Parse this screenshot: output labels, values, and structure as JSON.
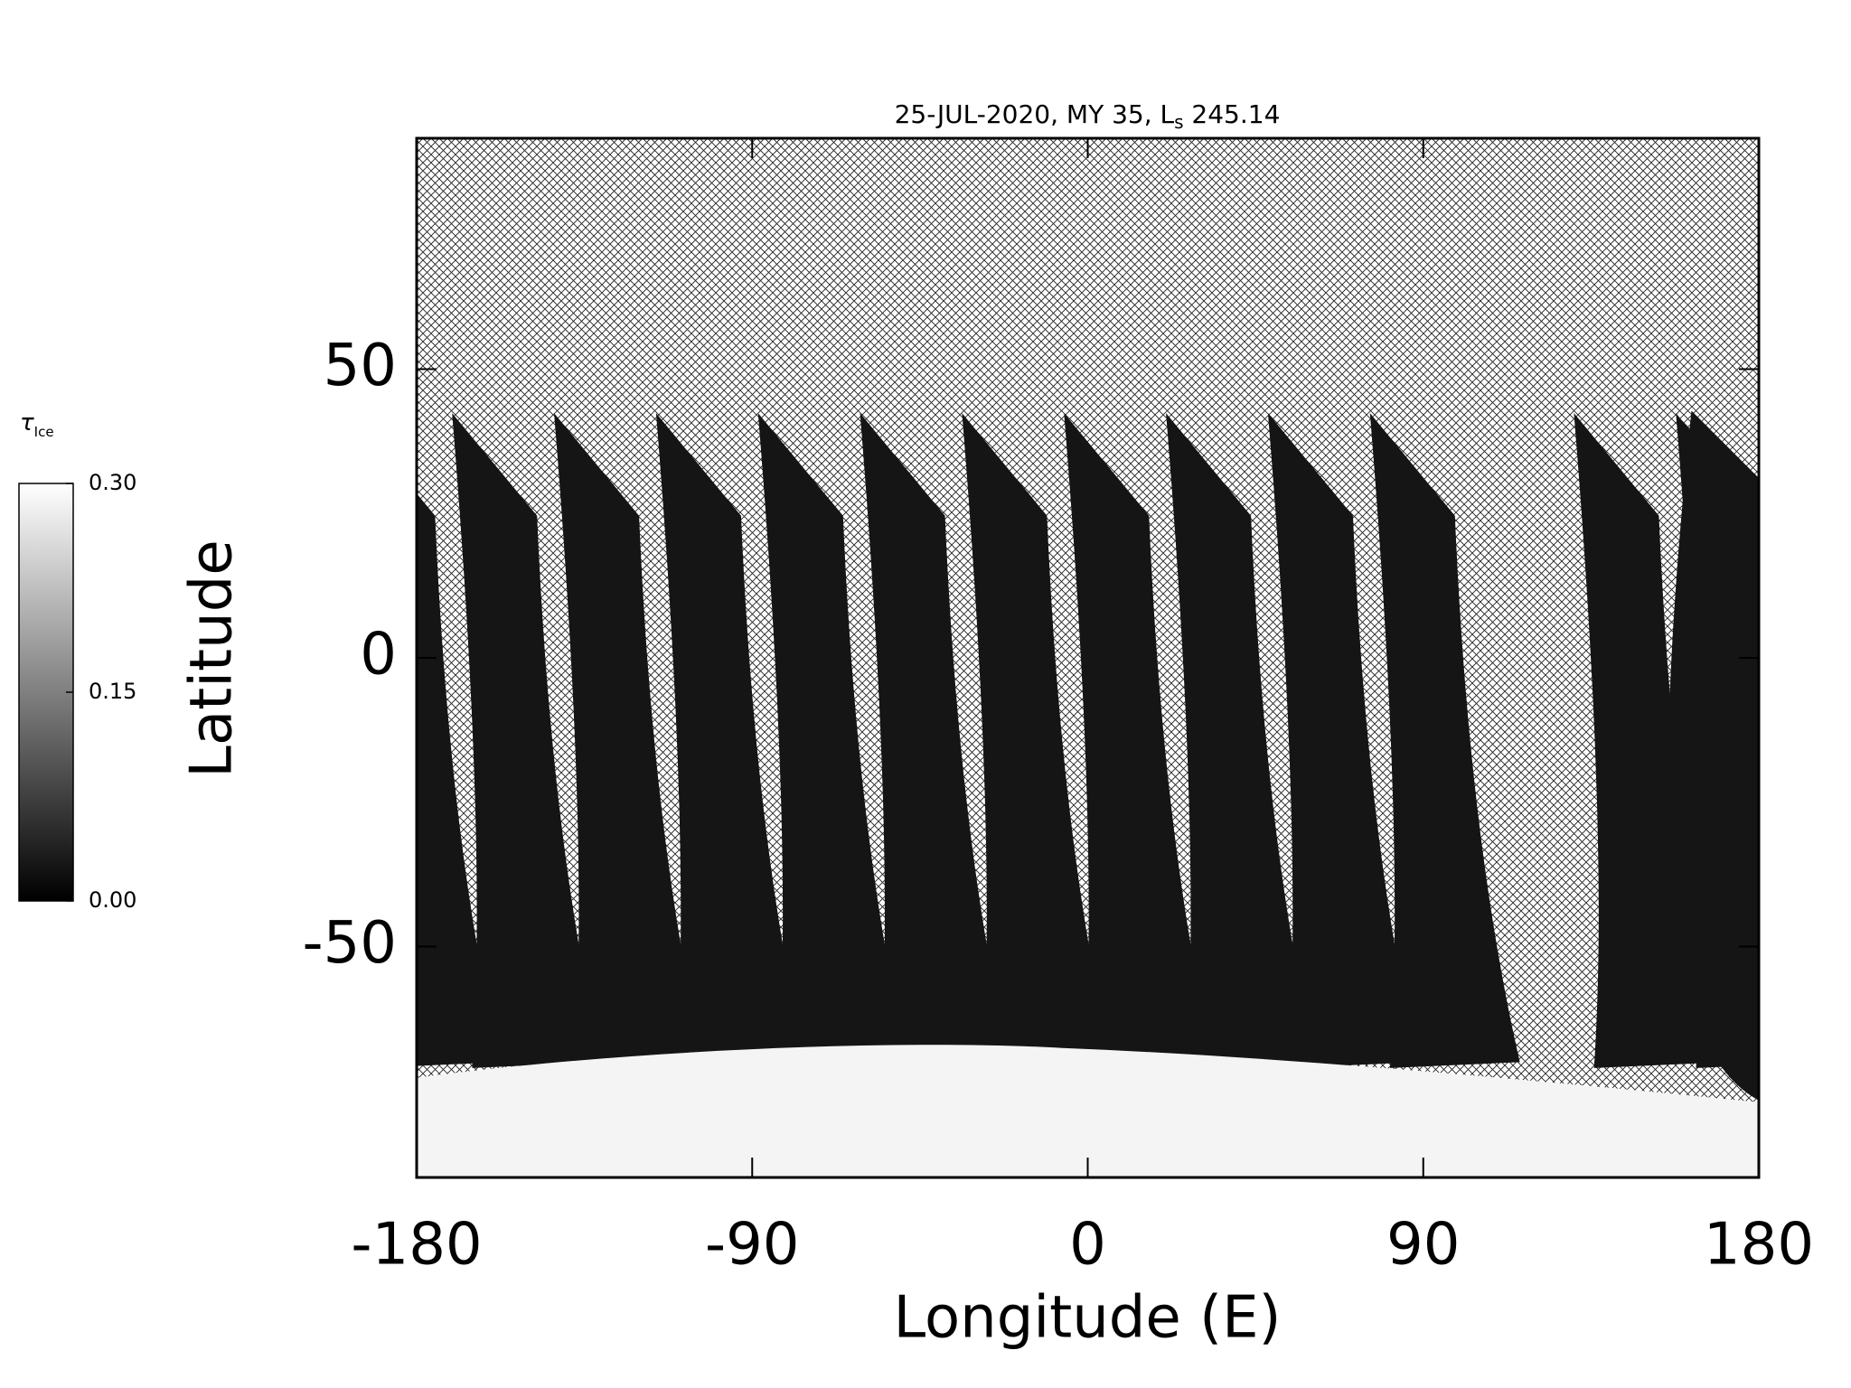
{
  "chart_data": {
    "type": "heatmap",
    "title": "25-JUL-2020, MY 35,  L",
    "title_subscript": "s",
    "title_suffix": " 245.14",
    "x_label": "Longitude (E)",
    "y_label": "Latitude",
    "xlim": [
      -180,
      180
    ],
    "xticks": [
      -180,
      -90,
      0,
      90,
      180
    ],
    "ylim": [
      -90,
      90
    ],
    "yticks": [
      -50,
      0,
      50
    ],
    "colorbar": {
      "label": "τ",
      "label_subscript": "Ice",
      "lim": [
        0,
        0.3
      ],
      "ticks": [
        {
          "value": 0,
          "label": "0.00"
        },
        {
          "value": 0.15,
          "label": "0.15"
        },
        {
          "value": 0.3,
          "label": "0.30"
        }
      ],
      "colors": [
        "#000000",
        "#ffffff"
      ]
    }
  }
}
